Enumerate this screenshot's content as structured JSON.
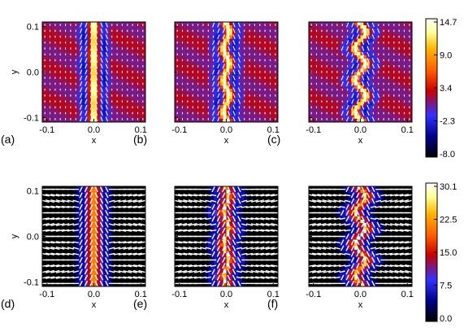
{
  "chart_data": {
    "type": "heatmap",
    "xlabel": "x",
    "ylabel": "y",
    "xlim": [
      -0.11,
      0.11
    ],
    "ylim": [
      -0.11,
      0.11
    ],
    "x_ticks": [
      "-0.1",
      "0.0",
      "0.1"
    ],
    "y_ticks": [
      "0.1",
      "0.0",
      "-0.1"
    ],
    "panels": [
      {
        "label": "(a)",
        "row": 0,
        "wave_amplitude": 0.0,
        "arrows": "small"
      },
      {
        "label": "(b)",
        "row": 0,
        "wave_amplitude": 0.006,
        "arrows": "small"
      },
      {
        "label": "(c)",
        "row": 0,
        "wave_amplitude": 0.012,
        "arrows": "small"
      },
      {
        "label": "(d)",
        "row": 1,
        "wave_amplitude": 0.0,
        "arrows": "large"
      },
      {
        "label": "(e)",
        "row": 1,
        "wave_amplitude": 0.006,
        "arrows": "large"
      },
      {
        "label": "(f)",
        "row": 1,
        "wave_amplitude": 0.012,
        "arrows": "large"
      }
    ],
    "colorbars": [
      {
        "row": 0,
        "range": [
          -8.0,
          14.7
        ],
        "ticks": [
          "14.7",
          "9.0",
          "3.4",
          "-2.3",
          "-8.0"
        ]
      },
      {
        "row": 1,
        "range": [
          0.0,
          30.1
        ],
        "ticks": [
          "30.1",
          "22.5",
          "15.0",
          "7.5",
          "0.0"
        ]
      }
    ],
    "colormap": [
      "#000000",
      "#00008c",
      "#3232ff",
      "#c80000",
      "#ff5a00",
      "#ffb400",
      "#ffff96",
      "#ffffff"
    ],
    "grid": false
  }
}
